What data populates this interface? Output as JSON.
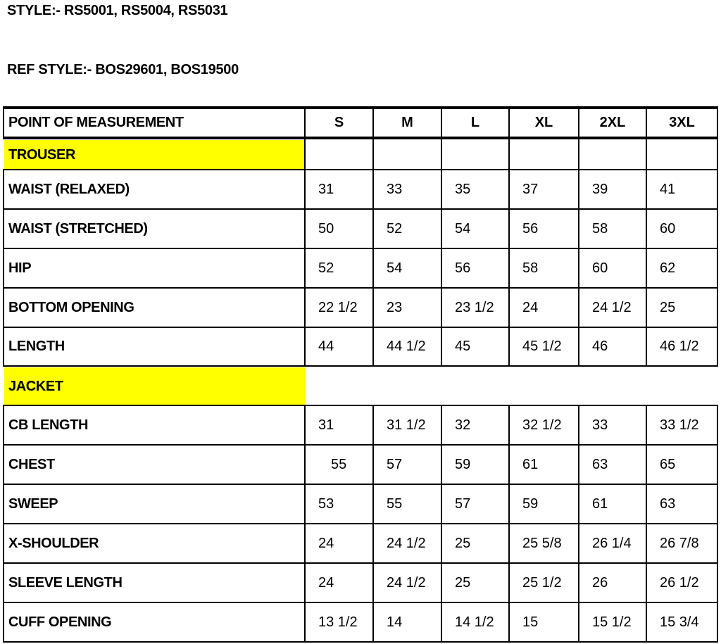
{
  "style_line": "STYLE:- RS5001, RS5004, RS5031",
  "ref_style_line": "REF STYLE:- BOS29601, BOS19500",
  "highlight_color": "#ffff00",
  "table": {
    "header": {
      "label": "POINT OF MEASUREMENT",
      "sizes": [
        "S",
        "M",
        "L",
        "XL",
        "2XL",
        "3XL"
      ]
    },
    "sections": [
      {
        "title": "TROUSER",
        "rows": [
          {
            "label": "WAIST (RELAXED)",
            "values": [
              "31",
              "33",
              "35",
              "37",
              "39",
              "41"
            ]
          },
          {
            "label": "WAIST (STRETCHED)",
            "values": [
              "50",
              "52",
              "54",
              "56",
              "58",
              "60"
            ]
          },
          {
            "label": "HIP",
            "values": [
              "52",
              "54",
              "56",
              "58",
              "60",
              "62"
            ]
          },
          {
            "label": "BOTTOM OPENING",
            "values": [
              "22 1/2",
              "23",
              "23 1/2",
              "24",
              "24 1/2",
              "25"
            ]
          },
          {
            "label": "LENGTH",
            "values": [
              "44",
              "44 1/2",
              "45",
              "45 1/2",
              "46",
              "46 1/2"
            ]
          }
        ]
      },
      {
        "title": "JACKET",
        "rows": [
          {
            "label": "CB LENGTH",
            "values": [
              "31",
              "31 1/2",
              "32",
              "32 1/2",
              "33",
              "33 1/2"
            ]
          },
          {
            "label": "CHEST",
            "values": [
              "55",
              "57",
              "59",
              "61",
              "63",
              "65"
            ]
          },
          {
            "label": "SWEEP",
            "values": [
              "53",
              "55",
              "57",
              "59",
              "61",
              "63"
            ]
          },
          {
            "label": "X-SHOULDER",
            "values": [
              "24",
              "24 1/2",
              "25",
              "25 5/8",
              "26 1/4",
              "26 7/8"
            ]
          },
          {
            "label": "SLEEVE LENGTH",
            "values": [
              "24",
              "24 1/2",
              "25",
              "25 1/2",
              "26",
              "26 1/2"
            ]
          },
          {
            "label": "CUFF OPENING",
            "values": [
              "13 1/2",
              "14",
              "14 1/2",
              "15",
              "15 1/2",
              "15 3/4"
            ]
          }
        ]
      }
    ]
  }
}
